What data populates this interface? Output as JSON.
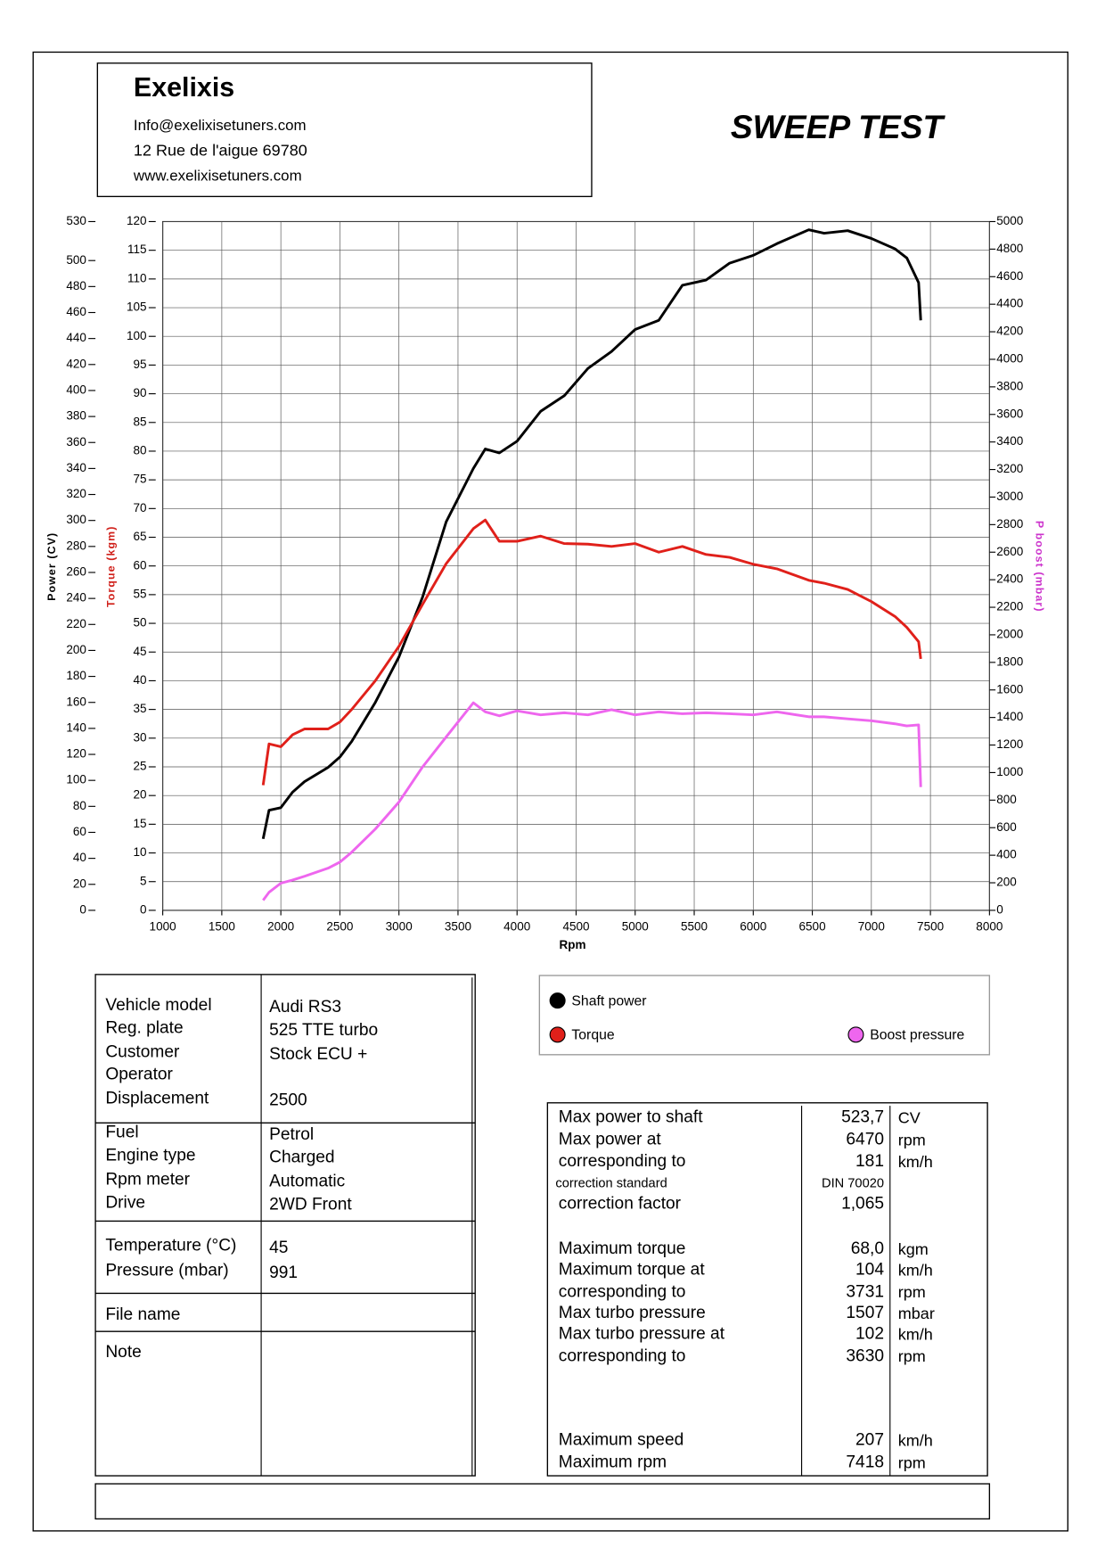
{
  "header": {
    "company": "Exelixis",
    "email": "Info@exelixisetuners.com",
    "address": "12 Rue de l'aigue 69780",
    "website": "www.exelixisetuners.com",
    "test_title": "SWEEP TEST"
  },
  "chart_data": {
    "type": "line",
    "xlabel": "Rpm",
    "ylabel": "Power (CV)",
    "y2label": "Torque (kgm)",
    "y3label": "P boost (mbar)",
    "x": [
      1850,
      1900,
      2000,
      2100,
      2200,
      2400,
      2500,
      2600,
      2800,
      3000,
      3200,
      3400,
      3630,
      3731,
      3850,
      4000,
      4200,
      4400,
      4600,
      4800,
      5000,
      5200,
      5400,
      5600,
      5800,
      6000,
      6200,
      6470,
      6600,
      6800,
      7000,
      7200,
      7300,
      7400,
      7418
    ],
    "xlim": [
      1000,
      8000
    ],
    "xticks": [
      1000,
      1500,
      2000,
      2500,
      3000,
      3500,
      4000,
      4500,
      5000,
      5500,
      6000,
      6500,
      7000,
      7500,
      8000
    ],
    "ylim": [
      0,
      530
    ],
    "yticks": [
      0,
      20,
      40,
      60,
      80,
      100,
      120,
      140,
      160,
      180,
      200,
      220,
      240,
      260,
      280,
      300,
      320,
      340,
      360,
      380,
      400,
      420,
      440,
      460,
      480,
      500,
      530
    ],
    "y2lim": [
      0,
      120
    ],
    "y2ticks": [
      0,
      5,
      10,
      15,
      20,
      25,
      30,
      35,
      40,
      45,
      50,
      55,
      60,
      65,
      70,
      75,
      80,
      85,
      90,
      95,
      100,
      105,
      110,
      115,
      120
    ],
    "y3lim": [
      0,
      5000
    ],
    "y3ticks": [
      0,
      200,
      400,
      600,
      800,
      1000,
      1200,
      1400,
      1600,
      1800,
      2000,
      2200,
      2400,
      2600,
      2800,
      3000,
      3200,
      3400,
      3600,
      3800,
      4000,
      4200,
      4400,
      4600,
      4800,
      5000
    ],
    "grid": true,
    "series": [
      {
        "name": "Shaft power",
        "color": "#000000",
        "axis": "y",
        "values": [
          55,
          77,
          79,
          91,
          99,
          110,
          118,
          130,
          160,
          195,
          241,
          299,
          340,
          355,
          352,
          361,
          384,
          396,
          417,
          430,
          447,
          454,
          481,
          485,
          498,
          504,
          513,
          523.7,
          521,
          523,
          517,
          509,
          502,
          483,
          454
        ]
      },
      {
        "name": "Torque",
        "color": "#e0201a",
        "axis": "y2",
        "values": [
          21.8,
          29,
          28.5,
          30.6,
          31.6,
          31.6,
          32.8,
          35,
          40,
          46,
          53.3,
          60.4,
          66.5,
          68.0,
          64.3,
          64.3,
          65.2,
          63.9,
          63.8,
          63.4,
          63.9,
          62.4,
          63.4,
          62,
          61.5,
          60.3,
          59.5,
          57.5,
          57,
          55.9,
          53.8,
          51.2,
          49.3,
          46.8,
          43.8
        ]
      },
      {
        "name": "Boost pressure",
        "color": "#ee66ee",
        "axis": "y3",
        "values": [
          73,
          131,
          197,
          220,
          247,
          306,
          350,
          422,
          590,
          786,
          1041,
          1259,
          1507,
          1441,
          1412,
          1448,
          1419,
          1434,
          1419,
          1456,
          1419,
          1441,
          1427,
          1434,
          1427,
          1419,
          1441,
          1405,
          1405,
          1390,
          1376,
          1354,
          1339,
          1346,
          895
        ]
      }
    ]
  },
  "vehicle_table": {
    "sections": [
      [
        [
          "Vehicle model",
          "Audi RS3"
        ],
        [
          "Reg. plate",
          "525 TTE turbo"
        ],
        [
          "Customer",
          "Stock ECU +"
        ],
        [
          "Operator"
        ],
        [
          "Displacement",
          "2500"
        ]
      ],
      [
        [
          "Fuel",
          "Petrol"
        ],
        [
          "Engine type",
          "Charged"
        ],
        [
          "Rpm meter",
          "Automatic"
        ],
        [
          "Drive",
          "2WD Front"
        ]
      ],
      [
        [
          "Temperature (°C)",
          "45"
        ],
        [
          "Pressure (mbar)",
          "991"
        ]
      ],
      [
        [
          "File name"
        ]
      ],
      [
        [
          "Note"
        ]
      ]
    ]
  },
  "results_table": {
    "rows": [
      [
        "Max power to shaft",
        "523,7",
        "CV"
      ],
      [
        "Max power at",
        "6470",
        "rpm"
      ],
      [
        "corresponding to",
        "181",
        "km/h"
      ],
      [
        "correction standard",
        "DIN 70020"
      ],
      [
        "correction factor",
        "1,065"
      ],
      [
        "Maximum torque",
        "68,0",
        "kgm"
      ],
      [
        "Maximum torque at",
        "104",
        "km/h"
      ],
      [
        "corresponding to",
        "3731",
        "rpm"
      ],
      [
        "Max turbo pressure",
        "1507",
        "mbar"
      ],
      [
        "Max turbo pressure at",
        "102",
        "km/h"
      ],
      [
        "corresponding to",
        "3630",
        "rpm"
      ],
      [
        "Maximum speed",
        "207",
        "km/h"
      ],
      [
        "Maximum rpm",
        "7418",
        "rpm"
      ]
    ]
  }
}
